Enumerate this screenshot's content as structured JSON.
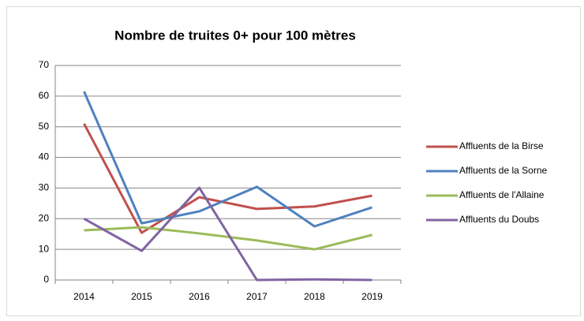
{
  "chart_data": {
    "type": "line",
    "title": "Nombre de truites 0+ pour 100 mètres",
    "categories": [
      "2014",
      "2015",
      "2016",
      "2017",
      "2018",
      "2019"
    ],
    "series": [
      {
        "name": "Affluents de la Birse",
        "color": "#c0504d",
        "values": [
          51,
          15.4,
          27,
          23.2,
          24,
          27.5
        ]
      },
      {
        "name": "Affluents de la Sorne",
        "color": "#4f81bd",
        "values": [
          61.5,
          18.5,
          22.4,
          30.4,
          17.5,
          23.7
        ]
      },
      {
        "name": "Affluents de l'Allaine",
        "color": "#9bbb59",
        "values": [
          16.2,
          17.2,
          15.2,
          12.9,
          10,
          14.7
        ]
      },
      {
        "name": "Affluents du Doubs",
        "color": "#8064a2",
        "values": [
          20,
          9.5,
          30.1,
          0,
          0.2,
          0
        ]
      }
    ],
    "ylim": [
      0,
      70
    ],
    "yticks": [
      0,
      10,
      20,
      30,
      40,
      50,
      60,
      70
    ],
    "grid": true,
    "legend": "right"
  }
}
